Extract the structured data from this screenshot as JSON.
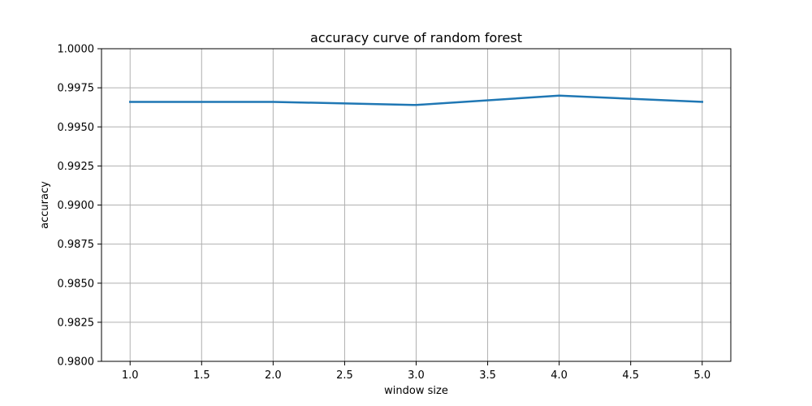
{
  "chart_data": {
    "type": "line",
    "title": "accuracy curve of random forest",
    "xlabel": "window size",
    "ylabel": "accuracy",
    "x": [
      1.0,
      2.0,
      3.0,
      4.0,
      5.0
    ],
    "series": [
      {
        "values": [
          0.9966,
          0.9966,
          0.9964,
          0.997,
          0.9966
        ],
        "color": "#1f77b4"
      }
    ],
    "xlim": [
      0.8,
      5.2
    ],
    "ylim": [
      0.98,
      1.0
    ],
    "xticks": [
      1.0,
      1.5,
      2.0,
      2.5,
      3.0,
      3.5,
      4.0,
      4.5,
      5.0
    ],
    "xtick_labels": [
      "1.0",
      "1.5",
      "2.0",
      "2.5",
      "3.0",
      "3.5",
      "4.0",
      "4.5",
      "5.0"
    ],
    "yticks": [
      0.98,
      0.9825,
      0.985,
      0.9875,
      0.99,
      0.9925,
      0.995,
      0.9975,
      1.0
    ],
    "ytick_labels": [
      "0.9800",
      "0.9825",
      "0.9850",
      "0.9875",
      "0.9900",
      "0.9925",
      "0.9950",
      "0.9975",
      "1.0000"
    ],
    "grid": true,
    "grid_color": "#b0b0b0"
  }
}
